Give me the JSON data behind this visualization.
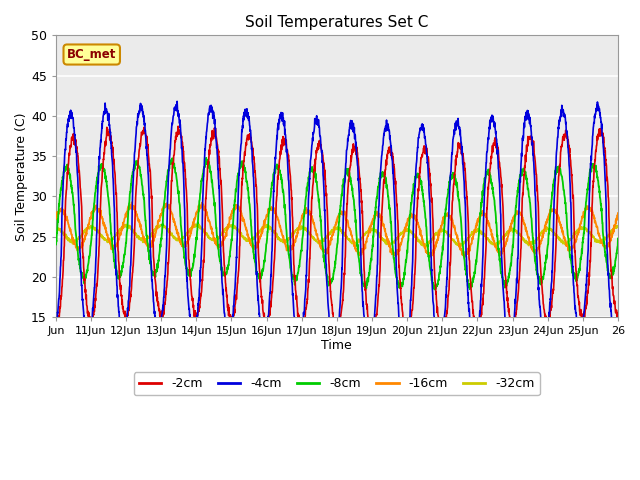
{
  "title": "Soil Temperatures Set C",
  "xlabel": "Time",
  "ylabel": "Soil Temperature (C)",
  "ylim": [
    15,
    50
  ],
  "xlim": [
    0,
    16
  ],
  "xtick_labels": [
    "Jun",
    "11Jun",
    "12Jun",
    "13Jun",
    "14Jun",
    "15Jun",
    "16Jun",
    "17Jun",
    "18Jun",
    "19Jun",
    "20Jun",
    "21Jun",
    "22Jun",
    "23Jun",
    "24Jun",
    "25Jun",
    "26"
  ],
  "xtick_positions": [
    0,
    1,
    2,
    3,
    4,
    5,
    6,
    7,
    8,
    9,
    10,
    11,
    12,
    13,
    14,
    15,
    16
  ],
  "ytick_positions": [
    15,
    20,
    25,
    30,
    35,
    40,
    45,
    50
  ],
  "legend_entries": [
    "-2cm",
    "-4cm",
    "-8cm",
    "-16cm",
    "-32cm"
  ],
  "legend_colors": [
    "#dd0000",
    "#0000dd",
    "#00cc00",
    "#ff8800",
    "#cccc00"
  ],
  "annotation_text": "BC_met",
  "fig_facecolor": "#ffffff",
  "ax_facecolor": "#ebebeb"
}
